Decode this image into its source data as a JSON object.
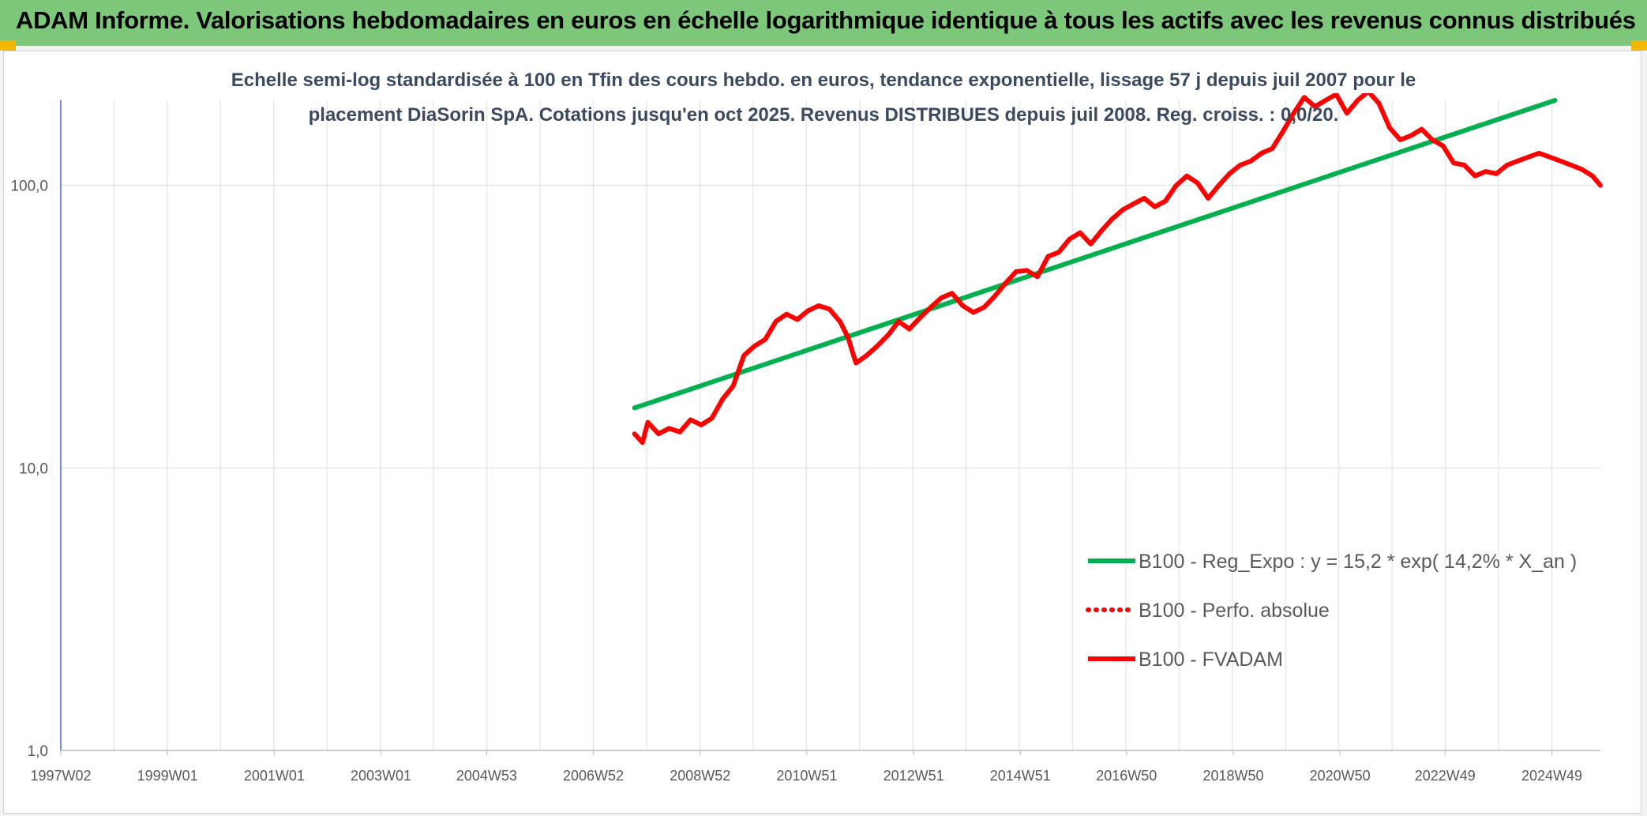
{
  "header": {
    "title": "ADAM Informe. Valorisations hebdomadaires en euros en échelle logarithmique identique à tous les actifs avec les revenus connus distribués"
  },
  "chart_data": {
    "type": "line",
    "title_lines": [
      "Echelle semi-log standardisée à 100 en Tfin des cours hebdo. en euros, tendance exponentielle, lissage 57 j depuis juil 2007 pour le",
      "placement DiaSorin SpA. Cotations jusqu'en oct 2025. Revenus DISTRIBUES depuis juil 2008. Reg. croiss. : 0,0/20."
    ],
    "y_scale": "log",
    "ylim": [
      1,
      200
    ],
    "y_ticks": [
      {
        "value": 1,
        "label": "1,0"
      },
      {
        "value": 10,
        "label": "10,0"
      },
      {
        "value": 100,
        "label": "100,0"
      }
    ],
    "x_range": [
      1997.0,
      2025.85
    ],
    "x_ticks": [
      {
        "year": 1997.0,
        "label": "1997W02"
      },
      {
        "year": 1999.0,
        "label": "1999W01"
      },
      {
        "year": 2001.0,
        "label": "2001W01"
      },
      {
        "year": 2003.0,
        "label": "2003W01"
      },
      {
        "year": 2004.98,
        "label": "2004W53"
      },
      {
        "year": 2006.98,
        "label": "2006W52"
      },
      {
        "year": 2008.98,
        "label": "2008W52"
      },
      {
        "year": 2010.98,
        "label": "2010W51"
      },
      {
        "year": 2012.98,
        "label": "2012W51"
      },
      {
        "year": 2014.98,
        "label": "2014W51"
      },
      {
        "year": 2016.97,
        "label": "2016W50"
      },
      {
        "year": 2018.97,
        "label": "2018W50"
      },
      {
        "year": 2020.97,
        "label": "2020W50"
      },
      {
        "year": 2022.94,
        "label": "2022W49"
      },
      {
        "year": 2024.94,
        "label": "2024W49"
      }
    ],
    "grid": true,
    "legend_position": "bottom-right",
    "series": [
      {
        "name": "B100 - Reg_Expo : y = 15,2 * exp( 14,2% *  X_an )",
        "color": "#00b050",
        "style": "solid",
        "x": [
          2007.75,
          2025.0
        ],
        "y": [
          16.3,
          200
        ]
      },
      {
        "name": "B100 - Perfo. absolue",
        "color": "#ff0000",
        "style": "dotted",
        "x": [],
        "y": []
      },
      {
        "name": "B100 - FVADAM",
        "color": "#ff0000",
        "style": "solid",
        "x": [
          2007.75,
          2007.9,
          2008.0,
          2008.2,
          2008.4,
          2008.6,
          2008.8,
          2009.0,
          2009.2,
          2009.4,
          2009.6,
          2009.8,
          2010.0,
          2010.2,
          2010.4,
          2010.6,
          2010.8,
          2011.0,
          2011.2,
          2011.4,
          2011.6,
          2011.75,
          2011.9,
          2012.1,
          2012.3,
          2012.5,
          2012.7,
          2012.9,
          2013.1,
          2013.3,
          2013.5,
          2013.7,
          2013.9,
          2014.1,
          2014.3,
          2014.5,
          2014.7,
          2014.9,
          2015.1,
          2015.3,
          2015.5,
          2015.7,
          2015.9,
          2016.1,
          2016.3,
          2016.5,
          2016.7,
          2016.9,
          2017.1,
          2017.3,
          2017.5,
          2017.7,
          2017.9,
          2018.1,
          2018.3,
          2018.5,
          2018.7,
          2018.9,
          2019.1,
          2019.3,
          2019.5,
          2019.7,
          2019.9,
          2020.1,
          2020.3,
          2020.5,
          2020.7,
          2020.9,
          2021.1,
          2021.3,
          2021.5,
          2021.7,
          2021.9,
          2022.1,
          2022.3,
          2022.5,
          2022.7,
          2022.9,
          2023.1,
          2023.3,
          2023.5,
          2023.7,
          2023.9,
          2024.1,
          2024.3,
          2024.5,
          2024.7,
          2024.9,
          2025.1,
          2025.3,
          2025.5,
          2025.7,
          2025.85
        ],
        "y": [
          13.2,
          12.3,
          14.5,
          13.2,
          13.8,
          13.4,
          14.8,
          14.2,
          15.0,
          17.5,
          19.5,
          25.0,
          27.0,
          28.5,
          33.0,
          35.0,
          33.5,
          36.0,
          37.5,
          36.5,
          33.0,
          29.0,
          23.5,
          25.0,
          27.0,
          29.5,
          33.0,
          31.0,
          34.0,
          37.0,
          40.0,
          41.5,
          37.5,
          35.5,
          37.0,
          40.5,
          45.0,
          49.5,
          50.0,
          47.5,
          56.0,
          58.0,
          64.5,
          68.0,
          62.0,
          69.0,
          76.0,
          82.0,
          86.0,
          90.0,
          84.0,
          88.0,
          100.0,
          108.0,
          102.0,
          90.0,
          100.0,
          110.0,
          118.0,
          122.0,
          130.0,
          135.0,
          155.0,
          180.0,
          205.0,
          190.0,
          200.0,
          210.0,
          180.0,
          200.0,
          215.0,
          195.0,
          160.0,
          145.0,
          150.0,
          158.0,
          145.0,
          138.0,
          120.0,
          118.0,
          108.0,
          112.0,
          110.0,
          118.0,
          122.0,
          126.0,
          130.0,
          126.0,
          122.0,
          118.0,
          114.0,
          108.0,
          100.0
        ]
      }
    ]
  }
}
